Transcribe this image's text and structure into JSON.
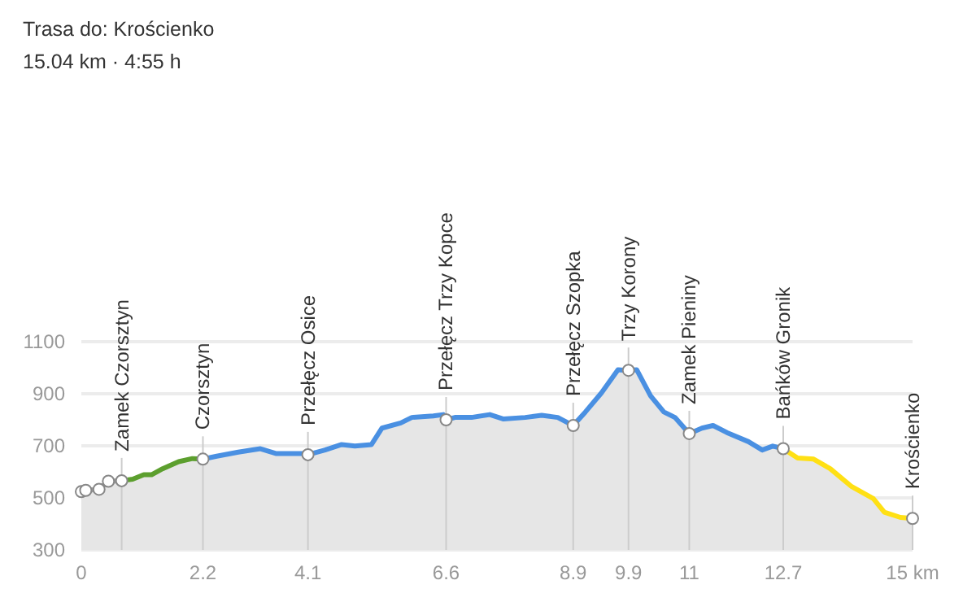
{
  "chart_data": {
    "type": "area",
    "title": "Trasa do: Krościenko",
    "subtitle": "15.04 km · 4:55 h",
    "xlim": [
      0,
      15.04
    ],
    "xticks": [
      0,
      2.2,
      4.1,
      6.6,
      8.9,
      9.9,
      11,
      12.7,
      {
        "value": 15.04,
        "label": "15 km"
      }
    ],
    "ylim": [
      300,
      1100
    ],
    "yticks": [
      300,
      500,
      700,
      900,
      1100
    ],
    "grid": "y",
    "series": [
      {
        "color": "#9e9e9e",
        "x": [
          0,
          0.08,
          0.32,
          0.49,
          0.73
        ],
        "values": [
          524,
          529,
          533,
          564,
          566
        ]
      },
      {
        "color": "#5c9f2e",
        "x": [
          0.73,
          0.93,
          1.13,
          1.27,
          1.47,
          1.76,
          2.01,
          2.2
        ],
        "values": [
          566,
          572,
          589,
          589,
          612,
          639,
          651,
          649
        ]
      },
      {
        "color": "#4a90e2",
        "x": [
          2.2,
          2.45,
          2.84,
          3.24,
          3.53,
          4.02,
          4.1,
          4.41,
          4.71,
          4.95,
          5.25,
          5.44,
          5.78,
          5.98,
          6.37,
          6.55,
          6.6,
          6.76,
          7.06,
          7.39,
          7.64,
          8.03,
          8.33,
          8.62,
          8.9,
          9.12,
          9.41,
          9.71,
          9.9,
          10.05,
          10.3,
          10.54,
          10.74,
          11,
          11.23,
          11.43,
          11.68,
          12.07,
          12.32,
          12.51,
          12.7
        ],
        "values": [
          649,
          660,
          676,
          689,
          670,
          670,
          666,
          684,
          705,
          699,
          705,
          768,
          788,
          809,
          815,
          820,
          800,
          809,
          809,
          820,
          803,
          809,
          817,
          809,
          778,
          830,
          903,
          992,
          990,
          992,
          892,
          830,
          809,
          747,
          768,
          778,
          751,
          716,
          684,
          699,
          689
        ]
      },
      {
        "color": "#ffe014",
        "x": [
          12.7,
          12.96,
          13.25,
          13.55,
          13.94,
          14.33,
          14.53,
          14.82,
          15.04
        ],
        "values": [
          689,
          653,
          649,
          612,
          543,
          497,
          445,
          425,
          421
        ]
      },
      {
        "type": "scatter",
        "color": "#ffffff",
        "marker": "circle",
        "x": [
          0,
          0.08,
          0.32,
          0.49,
          0.73,
          2.2,
          4.1,
          6.6,
          8.9,
          9.9,
          11,
          12.7,
          15.04
        ],
        "values": [
          524,
          529,
          533,
          564,
          566,
          649,
          666,
          800,
          778,
          990,
          747,
          689,
          421
        ]
      }
    ],
    "ref_lines": [
      {
        "axis": "x",
        "value": 0.73,
        "label": "Zamek Czorsztyn"
      },
      {
        "axis": "x",
        "value": 2.2,
        "label": "Czorsztyn"
      },
      {
        "axis": "x",
        "value": 4.1,
        "label": "Przełęcz Osice"
      },
      {
        "axis": "x",
        "value": 6.6,
        "label": "Przełęcz Trzy Kopce"
      },
      {
        "axis": "x",
        "value": 8.9,
        "label": "Przełęcz Szopka"
      },
      {
        "axis": "x",
        "value": 9.9,
        "label": "Trzy Korony"
      },
      {
        "axis": "x",
        "value": 11,
        "label": "Zamek Pieniny"
      },
      {
        "axis": "x",
        "value": 12.7,
        "label": "Bańków Gronik"
      },
      {
        "axis": "x",
        "value": 15.04,
        "label": "Krościenko"
      }
    ]
  }
}
